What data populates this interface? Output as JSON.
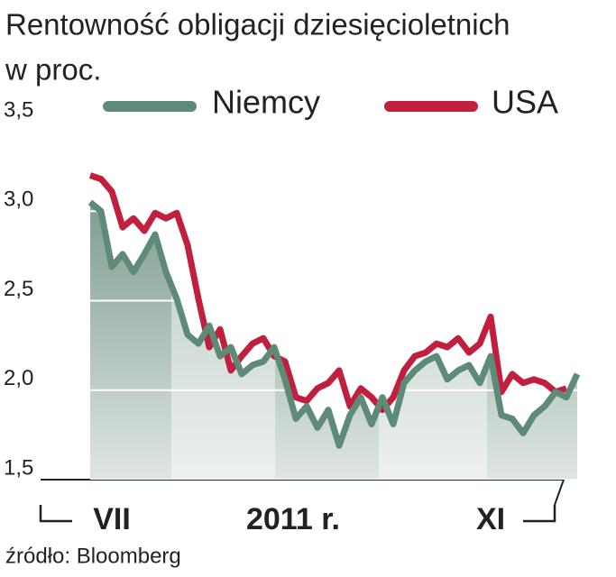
{
  "chart_data": {
    "type": "line",
    "title": "Rentowność obligacji dziesięcioletnich",
    "subtitle": "w proc.",
    "source": "źródło: Bloomberg",
    "xlabel": "2011 r.",
    "categories": [
      null,
      null,
      "VII",
      null,
      null,
      null,
      null,
      null,
      null,
      null,
      null,
      null,
      null,
      null,
      null,
      null,
      null,
      null,
      null,
      null,
      null,
      null,
      null,
      null,
      null,
      null,
      null,
      null,
      null,
      null,
      null,
      null,
      null,
      null,
      null,
      null,
      null,
      "XI",
      null,
      null,
      null,
      null,
      null,
      null,
      null,
      null
    ],
    "series": [
      {
        "name": "USA",
        "color": "#c0203e",
        "values": [
          3.2,
          3.18,
          3.11,
          2.91,
          2.96,
          2.89,
          2.99,
          2.96,
          2.99,
          2.81,
          2.51,
          2.24,
          2.34,
          2.11,
          2.19,
          2.26,
          2.29,
          2.19,
          2.16,
          1.96,
          1.94,
          2.01,
          2.04,
          2.11,
          1.91,
          2.01,
          1.96,
          1.89,
          1.96,
          2.11,
          2.19,
          2.21,
          2.26,
          2.24,
          2.29,
          2.21,
          2.26,
          2.41,
          1.99,
          2.09,
          2.04,
          2.06,
          2.04,
          1.99,
          2.01,
          null
        ]
      },
      {
        "name": "Niemcy",
        "color": "#5e8a78",
        "values": [
          3.05,
          3.0,
          2.69,
          2.76,
          2.66,
          2.76,
          2.87,
          2.66,
          2.51,
          2.31,
          2.26,
          2.36,
          2.19,
          2.24,
          2.09,
          2.14,
          2.16,
          2.24,
          2.06,
          1.84,
          1.91,
          1.79,
          1.89,
          1.69,
          1.86,
          1.96,
          1.81,
          1.96,
          1.81,
          2.04,
          2.11,
          2.16,
          2.19,
          2.06,
          2.11,
          2.14,
          2.04,
          2.19,
          1.86,
          1.84,
          1.76,
          1.86,
          1.91,
          1.99,
          1.96,
          2.09
        ]
      }
    ],
    "ylim": [
      1.5,
      3.5
    ],
    "yticks": [
      {
        "value": 1.5,
        "label": "1,5"
      },
      {
        "value": 2.0,
        "label": "2,0"
      },
      {
        "value": 2.5,
        "label": "2,5"
      },
      {
        "value": 3.0,
        "label": "3,0"
      },
      {
        "value": 3.5,
        "label": "3,5"
      }
    ],
    "grid": true
  }
}
